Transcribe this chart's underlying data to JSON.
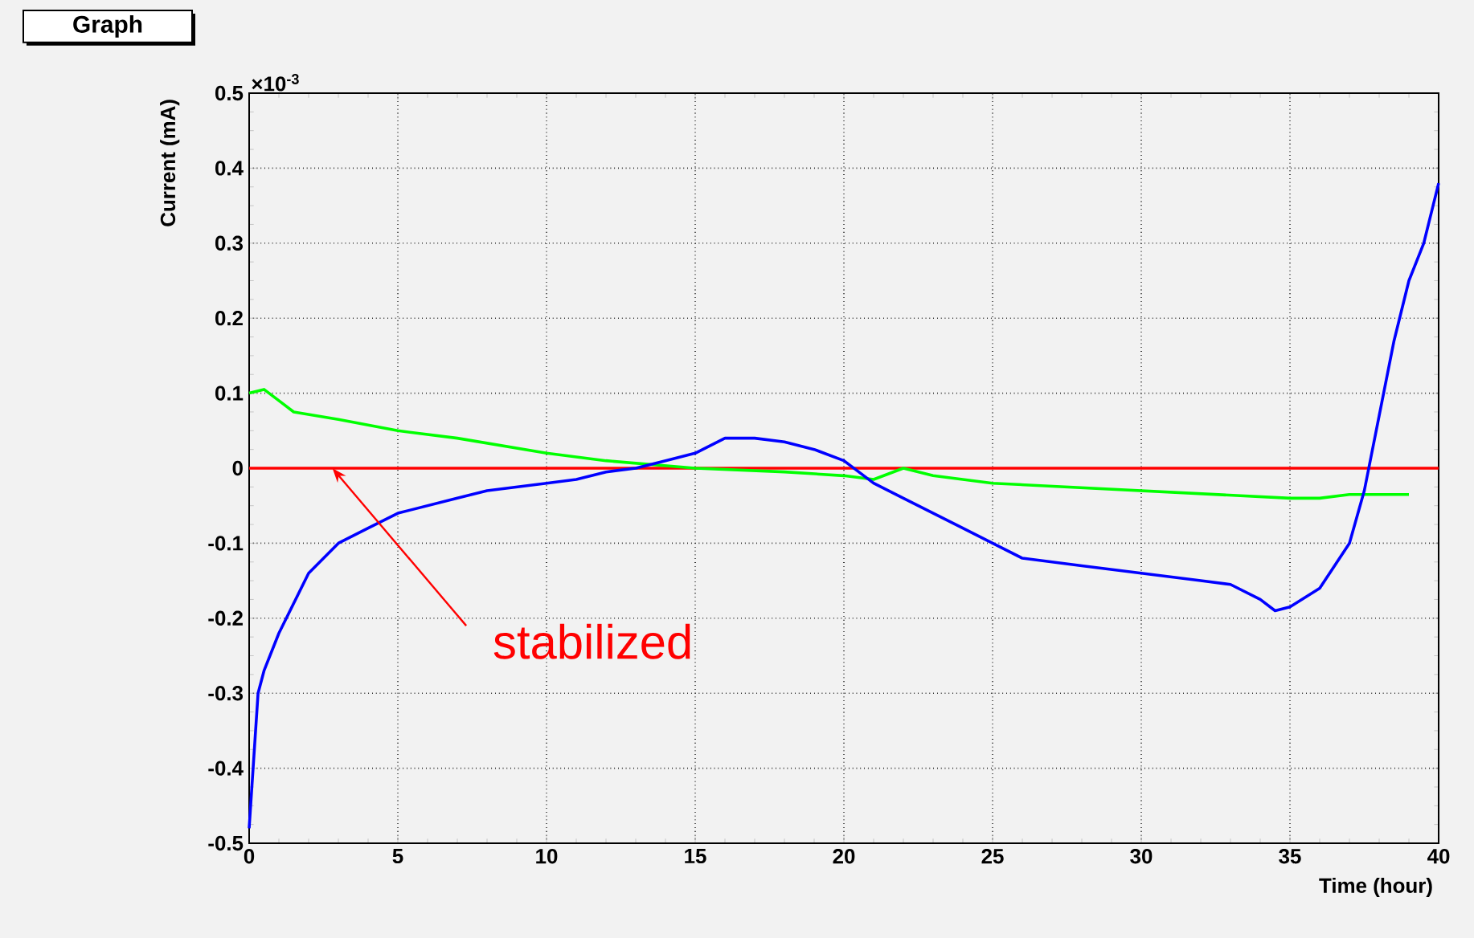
{
  "chart_data": {
    "type": "line",
    "title": "Graph",
    "xlabel": "Time (hour)",
    "ylabel": "Current (mA)",
    "xlim": [
      0,
      40
    ],
    "ylim": [
      -0.5,
      0.5
    ],
    "xticks": [
      0,
      5,
      10,
      15,
      20,
      25,
      30,
      35,
      40
    ],
    "yticks": [
      -0.5,
      -0.4,
      -0.3,
      -0.2,
      -0.1,
      0,
      0.1,
      0.2,
      0.3,
      0.4,
      0.5
    ],
    "grid": true,
    "annotations": [
      "×10$^{-3}$",
      {
        "text": "stabilized",
        "x": 2.8,
        "y": 0
      }
    ],
    "series": [
      {
        "color": "#ff0000",
        "x": [
          0,
          40
        ],
        "values": [
          0,
          0
        ]
      },
      {
        "color": "#00ff00",
        "x": [
          0,
          0.5,
          1,
          1.5,
          3,
          5,
          7,
          10,
          12,
          15,
          18,
          20,
          21,
          22,
          23,
          25,
          30,
          35,
          36,
          37,
          39
        ],
        "values": [
          0.1,
          0.105,
          0.09,
          0.075,
          0.065,
          0.05,
          0.04,
          0.02,
          0.01,
          0,
          -0.005,
          -0.01,
          -0.015,
          0,
          -0.01,
          -0.02,
          -0.03,
          -0.04,
          -0.04,
          -0.035,
          -0.035
        ]
      },
      {
        "color": "#0000ff",
        "x": [
          0,
          0.3,
          0.5,
          1,
          2,
          3,
          4,
          5,
          7,
          8,
          10,
          11,
          12,
          13,
          14,
          15,
          16,
          17,
          18,
          19,
          20,
          21,
          22,
          23,
          24,
          25,
          26,
          28,
          30,
          32,
          33,
          34,
          34.5,
          35,
          36,
          37,
          37.5,
          38,
          38.5,
          39,
          39.5,
          40
        ],
        "values": [
          -0.48,
          -0.3,
          -0.27,
          -0.22,
          -0.14,
          -0.1,
          -0.08,
          -0.06,
          -0.04,
          -0.03,
          -0.02,
          -0.015,
          -0.005,
          0,
          0.01,
          0.02,
          0.04,
          0.04,
          0.035,
          0.025,
          0.01,
          -0.02,
          -0.04,
          -0.06,
          -0.08,
          -0.1,
          -0.12,
          -0.13,
          -0.14,
          -0.15,
          -0.155,
          -0.175,
          -0.19,
          -0.185,
          -0.16,
          -0.1,
          -0.03,
          0.07,
          0.17,
          0.25,
          0.3,
          0.38
        ]
      }
    ]
  }
}
